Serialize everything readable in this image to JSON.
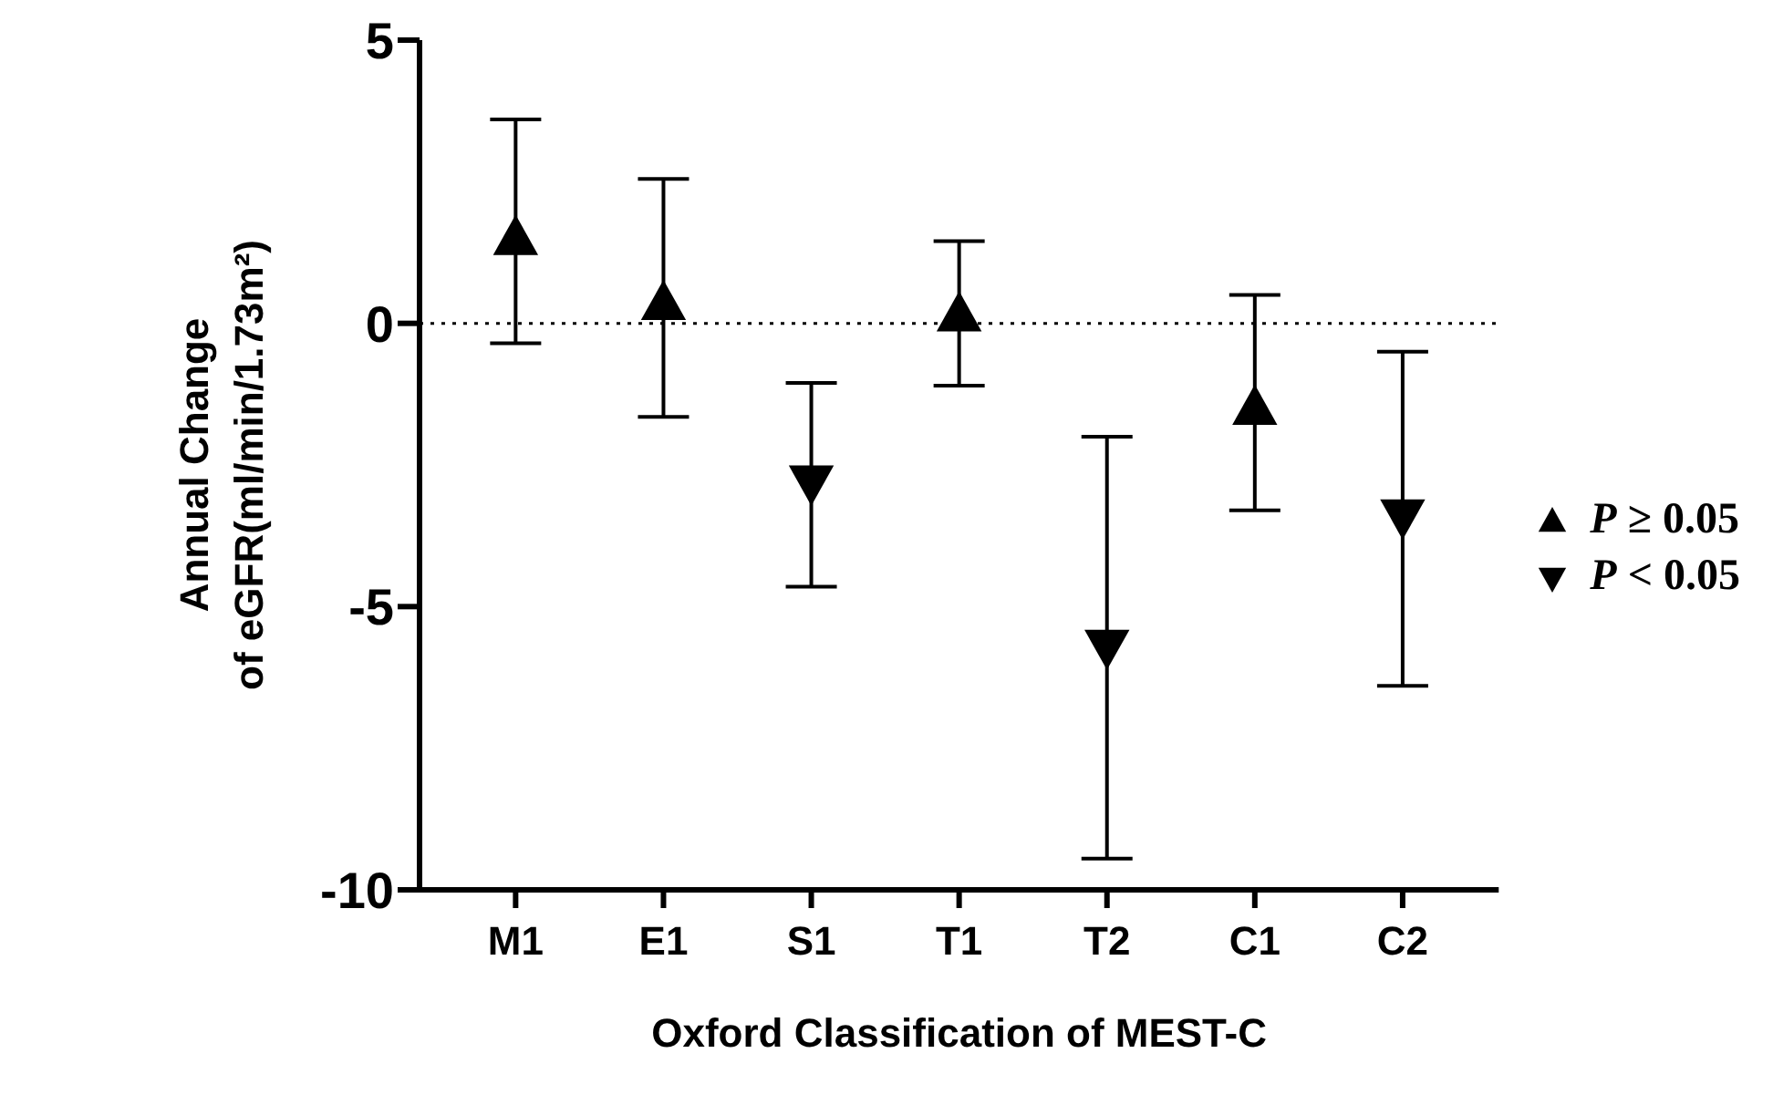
{
  "chart_data": {
    "type": "scatter",
    "xlabel": "Oxford Classification of MEST-C",
    "ylabel": "Annual Change\nof eGFR(ml/min/1.73m²)",
    "categories": [
      "M1",
      "E1",
      "S1",
      "T1",
      "T2",
      "C1",
      "C2"
    ],
    "series": [
      {
        "name": "P ≥ 0.05",
        "color": "#000000",
        "marker": "triangle",
        "values": [
          1.5,
          0.35,
          null,
          0.15,
          null,
          -1.5,
          null
        ],
        "errors": [
          [
            -0.35,
            3.6
          ],
          [
            -1.65,
            2.55
          ],
          null,
          [
            -1.1,
            1.45
          ],
          null,
          [
            -3.3,
            0.5
          ],
          null
        ]
      },
      {
        "name": "P < 0.05",
        "color": "#000000",
        "marker": "triangle-down",
        "values": [
          null,
          null,
          -2.8,
          null,
          -5.7,
          null,
          -3.4
        ],
        "errors": [
          null,
          null,
          [
            -4.65,
            -1.05
          ],
          null,
          [
            -9.45,
            -2.0
          ],
          null,
          [
            -6.4,
            -0.5
          ]
        ]
      }
    ],
    "ylim": [
      -10,
      5
    ],
    "yticks": [
      -10,
      -5,
      0,
      5
    ],
    "ref_lines": [
      {
        "axis": "y",
        "value": 0,
        "line_style": "dotted"
      }
    ],
    "grid": false,
    "legend": "right"
  }
}
